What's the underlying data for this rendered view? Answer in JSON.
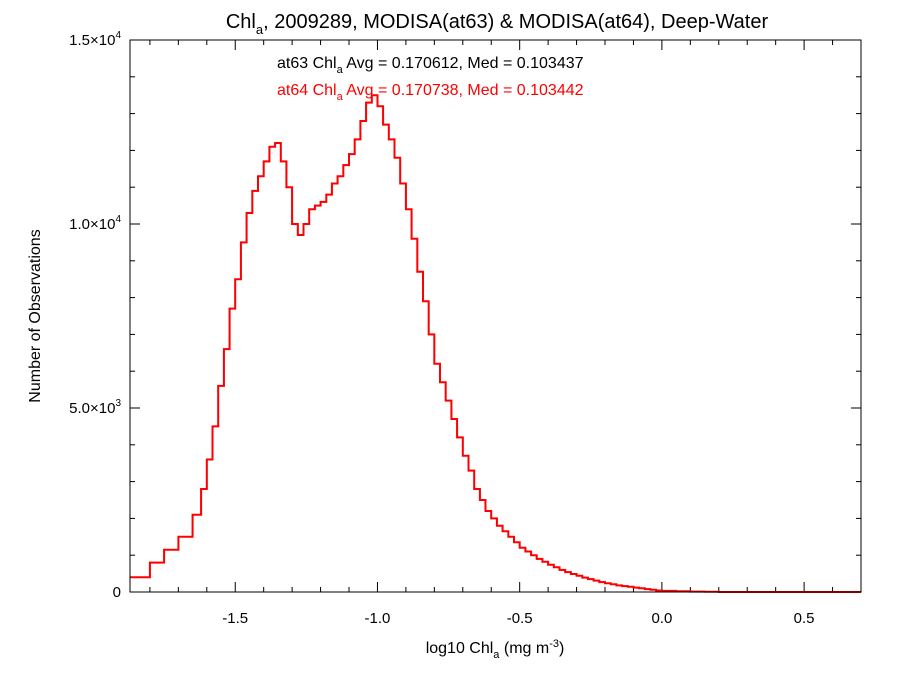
{
  "chart_data": {
    "type": "line",
    "title_parts": {
      "pre": "Chl",
      "sub": "a",
      "post": ", 2009289, MODISA(at63) & MODISA(at64), Deep-Water"
    },
    "xlabel_parts": {
      "pre": "log10 Chl",
      "sub": "a",
      "mid": " (mg m",
      "sup": "-3",
      "post": ")"
    },
    "ylabel": "Number of Observations",
    "xlim": [
      -1.87,
      0.7
    ],
    "ylim": [
      0,
      15000
    ],
    "x_ticks": [
      {
        "value": -1.5,
        "label": "-1.5"
      },
      {
        "value": -1.0,
        "label": "-1.0"
      },
      {
        "value": -0.5,
        "label": "-0.5"
      },
      {
        "value": 0.0,
        "label": "0.0"
      },
      {
        "value": 0.5,
        "label": "0.5"
      }
    ],
    "y_ticks": [
      {
        "value": 0,
        "mant": "0",
        "exp": ""
      },
      {
        "value": 5000,
        "mant": "5.0×10",
        "exp": "3"
      },
      {
        "value": 10000,
        "mant": "1.0×10",
        "exp": "4"
      },
      {
        "value": 15000,
        "mant": "1.5×10",
        "exp": "4"
      }
    ],
    "annotations": [
      {
        "pre": "at63 Chl",
        "sub": "a",
        "post": " Avg = 0.170612, Med = 0.103437",
        "color": "#000000"
      },
      {
        "pre": "at64 Chl",
        "sub": "a",
        "post": " Avg = 0.170738, Med = 0.103442",
        "color": "#ff0000"
      }
    ],
    "series": [
      {
        "color": "#000000",
        "x": [
          -1.87,
          -1.8,
          -1.75,
          -1.7,
          -1.65,
          -1.62,
          -1.6,
          -1.58,
          -1.56,
          -1.54,
          -1.52,
          -1.5,
          -1.48,
          -1.46,
          -1.44,
          -1.42,
          -1.4,
          -1.38,
          -1.36,
          -1.34,
          -1.32,
          -1.3,
          -1.28,
          -1.26,
          -1.24,
          -1.22,
          -1.2,
          -1.18,
          -1.16,
          -1.14,
          -1.12,
          -1.1,
          -1.08,
          -1.06,
          -1.04,
          -1.02,
          -1.0,
          -0.98,
          -0.96,
          -0.94,
          -0.92,
          -0.9,
          -0.88,
          -0.86,
          -0.84,
          -0.82,
          -0.8,
          -0.78,
          -0.76,
          -0.74,
          -0.72,
          -0.7,
          -0.68,
          -0.66,
          -0.64,
          -0.62,
          -0.6,
          -0.58,
          -0.56,
          -0.54,
          -0.52,
          -0.5,
          -0.48,
          -0.46,
          -0.44,
          -0.42,
          -0.4,
          -0.38,
          -0.36,
          -0.34,
          -0.32,
          -0.3,
          -0.28,
          -0.26,
          -0.24,
          -0.22,
          -0.2,
          -0.18,
          -0.16,
          -0.14,
          -0.12,
          -0.1,
          -0.08,
          -0.06,
          -0.04,
          -0.02,
          0.0,
          0.05,
          0.1,
          0.15,
          0.2,
          0.25,
          0.3,
          0.35,
          0.4,
          0.5,
          0.6,
          0.7
        ],
        "values": [
          400,
          800,
          1150,
          1500,
          2100,
          2800,
          3600,
          4500,
          5600,
          6600,
          7700,
          8500,
          9500,
          10300,
          10900,
          11300,
          11700,
          12100,
          12200,
          11700,
          11000,
          10000,
          9700,
          10000,
          10400,
          10500,
          10600,
          10800,
          11100,
          11300,
          11600,
          11900,
          12300,
          12800,
          13300,
          13500,
          13200,
          12700,
          12300,
          11800,
          11100,
          10400,
          9600,
          8700,
          7900,
          7000,
          6200,
          5700,
          5200,
          4700,
          4200,
          3700,
          3300,
          2800,
          2500,
          2200,
          2000,
          1800,
          1650,
          1500,
          1350,
          1200,
          1100,
          1000,
          900,
          820,
          740,
          670,
          600,
          540,
          490,
          440,
          390,
          350,
          310,
          270,
          240,
          210,
          180,
          160,
          140,
          120,
          100,
          80,
          60,
          40,
          30,
          20,
          10,
          5,
          0,
          0,
          0,
          0,
          0,
          0,
          0,
          0
        ],
        "values_note_skip": true
      },
      {
        "color": "#ff0000",
        "x": [
          -1.87,
          -1.8,
          -1.75,
          -1.7,
          -1.65,
          -1.62,
          -1.6,
          -1.58,
          -1.56,
          -1.54,
          -1.52,
          -1.5,
          -1.48,
          -1.46,
          -1.44,
          -1.42,
          -1.4,
          -1.38,
          -1.36,
          -1.34,
          -1.32,
          -1.3,
          -1.28,
          -1.26,
          -1.24,
          -1.22,
          -1.2,
          -1.18,
          -1.16,
          -1.14,
          -1.12,
          -1.1,
          -1.08,
          -1.06,
          -1.04,
          -1.02,
          -1.0,
          -0.98,
          -0.96,
          -0.94,
          -0.92,
          -0.9,
          -0.88,
          -0.86,
          -0.84,
          -0.82,
          -0.8,
          -0.78,
          -0.76,
          -0.74,
          -0.72,
          -0.7,
          -0.68,
          -0.66,
          -0.64,
          -0.62,
          -0.6,
          -0.58,
          -0.56,
          -0.54,
          -0.52,
          -0.5,
          -0.48,
          -0.46,
          -0.44,
          -0.42,
          -0.4,
          -0.38,
          -0.36,
          -0.34,
          -0.32,
          -0.3,
          -0.28,
          -0.26,
          -0.24,
          -0.22,
          -0.2,
          -0.18,
          -0.16,
          -0.14,
          -0.12,
          -0.1,
          -0.08,
          -0.06,
          -0.04,
          -0.02,
          0.0,
          0.05,
          0.1,
          0.15,
          0.2,
          0.25,
          0.3,
          0.35,
          0.4,
          0.5,
          0.6,
          0.7
        ],
        "values": [
          400,
          800,
          1150,
          1500,
          2100,
          2800,
          3600,
          4500,
          5600,
          6600,
          7700,
          8500,
          9500,
          10300,
          10900,
          11300,
          11700,
          12100,
          12200,
          11700,
          11000,
          10000,
          9700,
          10000,
          10400,
          10500,
          10600,
          10800,
          11100,
          11300,
          11600,
          11900,
          12300,
          12800,
          13300,
          13500,
          13200,
          12700,
          12300,
          11800,
          11100,
          10400,
          9600,
          8700,
          7900,
          7000,
          6200,
          5700,
          5200,
          4700,
          4200,
          3700,
          3300,
          2800,
          2500,
          2200,
          2000,
          1800,
          1650,
          1500,
          1350,
          1200,
          1100,
          1000,
          900,
          820,
          740,
          670,
          600,
          540,
          490,
          440,
          390,
          350,
          310,
          270,
          240,
          210,
          180,
          160,
          140,
          120,
          100,
          80,
          60,
          40,
          30,
          20,
          10,
          5,
          0,
          0,
          0,
          0,
          0,
          0,
          0,
          0
        ]
      }
    ]
  }
}
